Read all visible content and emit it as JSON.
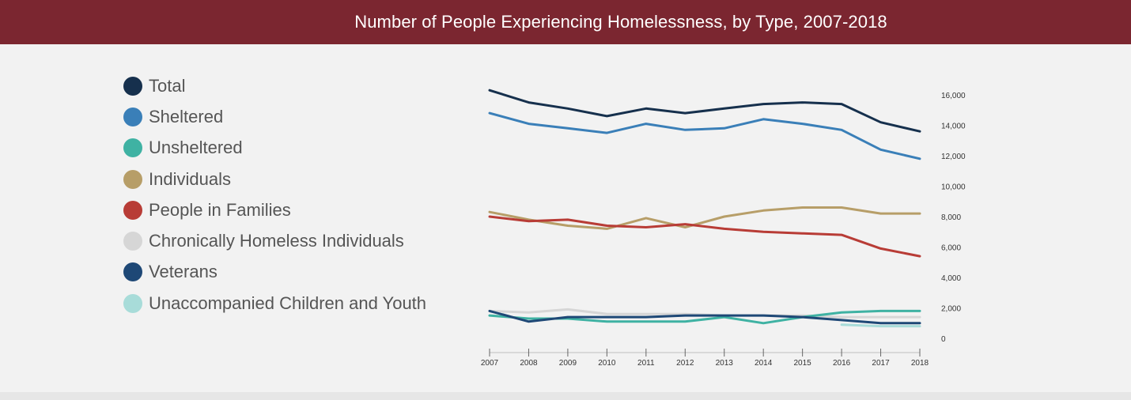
{
  "header": {
    "title": "Number of People Experiencing Homelessness, by Type, 2007-2018",
    "background_color": "#7b2630"
  },
  "chart_data": {
    "type": "line",
    "title": "Number of People Experiencing Homelessness, by Type, 2007-2018",
    "xlabel": "",
    "ylabel": "",
    "x": [
      "2007",
      "2008",
      "2009",
      "2010",
      "2011",
      "2012",
      "2013",
      "2014",
      "2015",
      "2016",
      "2017",
      "2018"
    ],
    "y_ticks": [
      "0",
      "2,000",
      "4,000",
      "6,000",
      "8,000",
      "10,000",
      "12,000",
      "14,000",
      "16,000"
    ],
    "ylim": [
      0,
      16000
    ],
    "y_axis_side": "right",
    "grid": false,
    "legend_placement": "left",
    "series": [
      {
        "name": "Total",
        "color": "#16304d",
        "values": [
          16300,
          15500,
          15100,
          14600,
          15100,
          14800,
          15100,
          15400,
          15500,
          15400,
          14200,
          13600
        ]
      },
      {
        "name": "Sheltered",
        "color": "#3a7fb8",
        "values": [
          14800,
          14100,
          13800,
          13500,
          14100,
          13700,
          13800,
          14400,
          14100,
          13700,
          12400,
          11800
        ]
      },
      {
        "name": "Unsheltered",
        "color": "#3fb2a3",
        "values": [
          1500,
          1300,
          1300,
          1100,
          1100,
          1100,
          1400,
          1000,
          1400,
          1700,
          1800,
          1800
        ]
      },
      {
        "name": "Individuals",
        "color": "#b79e68",
        "values": [
          8300,
          7800,
          7400,
          7200,
          7900,
          7300,
          8000,
          8400,
          8600,
          8600,
          8200,
          8200
        ]
      },
      {
        "name": "People in Families",
        "color": "#b83c36",
        "values": [
          8000,
          7700,
          7800,
          7400,
          7300,
          7500,
          7200,
          7000,
          6900,
          6800,
          5900,
          5400
        ]
      },
      {
        "name": "Chronically Homeless Individuals",
        "color": "#d6d6d6",
        "values": [
          1800,
          1700,
          1900,
          1600,
          1600,
          1600,
          1500,
          1500,
          1500,
          1400,
          1400,
          1400
        ]
      },
      {
        "name": "Veterans",
        "color": "#1e4876",
        "values": [
          1800,
          1100,
          1400,
          1400,
          1400,
          1500,
          1500,
          1500,
          1400,
          1200,
          1000,
          1000
        ]
      },
      {
        "name": "Unaccompanied Children and Youth",
        "color": "#a8dcd9",
        "values": [
          null,
          null,
          null,
          null,
          null,
          null,
          null,
          null,
          null,
          900,
          800,
          800
        ]
      }
    ]
  }
}
